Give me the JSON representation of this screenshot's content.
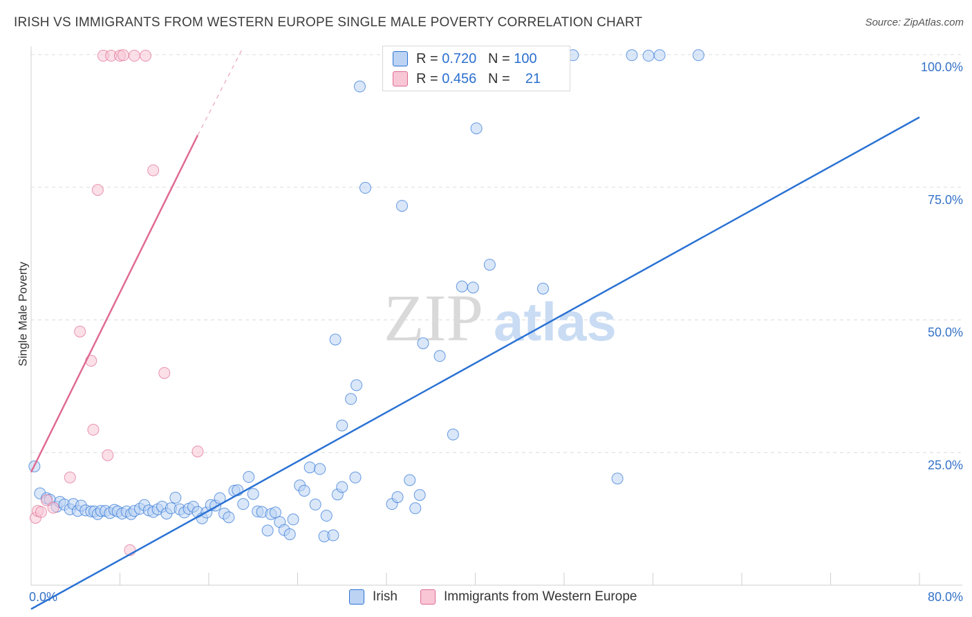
{
  "title": "IRISH VS IMMIGRANTS FROM WESTERN EUROPE SINGLE MALE POVERTY CORRELATION CHART",
  "source": "Source: ZipAtlas.com",
  "watermark": {
    "zip": "ZIP",
    "atlas": "atlas"
  },
  "colors": {
    "blue": "#2a72d4",
    "pink": "#e06a93",
    "blue_fill": "#bcd3f4",
    "pink_fill": "#f8c6d5"
  },
  "legend": {
    "row1": {
      "r_label": "R =",
      "r_value": "0.720",
      "n_label": "N =",
      "n_value": "100"
    },
    "row2": {
      "r_label": "R =",
      "r_value": "0.456",
      "n_label": "N =",
      "n_value": "21"
    }
  },
  "chart_data": {
    "type": "scatter",
    "title": "IRISH VS IMMIGRANTS FROM WESTERN EUROPE SINGLE MALE POVERTY CORRELATION CHART",
    "xlabel": "",
    "ylabel": "Single Male Poverty",
    "xlim": [
      0,
      80
    ],
    "ylim": [
      0,
      100
    ],
    "x_tick_labels": [
      "0.0%",
      "80.0%"
    ],
    "y_ticks": [
      25,
      50,
      75,
      100
    ],
    "y_tick_labels": [
      "25.0%",
      "50.0%",
      "75.0%",
      "100.0%"
    ],
    "grid": true,
    "legend_position": "bottom",
    "series": [
      {
        "name": "Irish",
        "color": "#2a72d4",
        "points": [
          [
            0.3,
            22.4
          ],
          [
            0.8,
            17.3
          ],
          [
            1.4,
            16.4
          ],
          [
            1.7,
            16.1
          ],
          [
            2.3,
            14.8
          ],
          [
            2.6,
            15.7
          ],
          [
            3.0,
            15.2
          ],
          [
            3.5,
            14.3
          ],
          [
            3.8,
            15.3
          ],
          [
            4.2,
            14.0
          ],
          [
            4.5,
            15.0
          ],
          [
            4.9,
            14.1
          ],
          [
            5.4,
            13.9
          ],
          [
            5.7,
            13.9
          ],
          [
            6.0,
            13.4
          ],
          [
            6.3,
            14.0
          ],
          [
            6.7,
            14.0
          ],
          [
            7.1,
            13.6
          ],
          [
            7.5,
            14.2
          ],
          [
            7.8,
            13.9
          ],
          [
            8.2,
            13.5
          ],
          [
            8.6,
            13.9
          ],
          [
            9.0,
            13.4
          ],
          [
            9.3,
            14.0
          ],
          [
            9.8,
            14.4
          ],
          [
            10.2,
            15.1
          ],
          [
            10.6,
            14.1
          ],
          [
            11.0,
            13.8
          ],
          [
            11.4,
            14.3
          ],
          [
            11.8,
            14.8
          ],
          [
            12.2,
            13.5
          ],
          [
            12.6,
            14.5
          ],
          [
            13.0,
            16.5
          ],
          [
            13.4,
            14.3
          ],
          [
            13.8,
            13.7
          ],
          [
            14.2,
            14.4
          ],
          [
            14.6,
            14.8
          ],
          [
            15.0,
            13.8
          ],
          [
            15.4,
            12.6
          ],
          [
            15.8,
            13.7
          ],
          [
            16.2,
            15.1
          ],
          [
            16.6,
            15.0
          ],
          [
            17.0,
            16.4
          ],
          [
            17.4,
            13.5
          ],
          [
            17.8,
            12.8
          ],
          [
            18.3,
            17.8
          ],
          [
            18.6,
            17.9
          ],
          [
            19.1,
            15.3
          ],
          [
            19.6,
            20.4
          ],
          [
            20.0,
            17.2
          ],
          [
            20.4,
            13.9
          ],
          [
            20.8,
            13.8
          ],
          [
            21.3,
            10.3
          ],
          [
            21.6,
            13.4
          ],
          [
            22.0,
            13.7
          ],
          [
            22.4,
            11.9
          ],
          [
            22.8,
            10.4
          ],
          [
            23.3,
            9.6
          ],
          [
            23.6,
            12.4
          ],
          [
            24.2,
            18.8
          ],
          [
            24.6,
            17.8
          ],
          [
            25.1,
            22.2
          ],
          [
            25.6,
            15.2
          ],
          [
            26.0,
            21.9
          ],
          [
            26.4,
            9.2
          ],
          [
            26.6,
            13.1
          ],
          [
            27.2,
            9.4
          ],
          [
            27.6,
            17.1
          ],
          [
            28.0,
            18.5
          ],
          [
            29.2,
            20.3
          ],
          [
            29.6,
            94.0
          ],
          [
            30.1,
            74.9
          ],
          [
            32.5,
            15.3
          ],
          [
            33.0,
            16.6
          ],
          [
            33.4,
            71.5
          ],
          [
            34.1,
            19.8
          ],
          [
            34.6,
            14.5
          ],
          [
            35.0,
            17.0
          ],
          [
            35.3,
            45.6
          ],
          [
            35.8,
            99.8
          ],
          [
            36.2,
            99.9
          ],
          [
            36.8,
            43.2
          ],
          [
            38.0,
            28.4
          ],
          [
            38.8,
            56.3
          ],
          [
            39.8,
            56.1
          ],
          [
            40.1,
            86.1
          ],
          [
            41.3,
            60.4
          ],
          [
            43.0,
            99.9
          ],
          [
            45.9,
            99.9
          ],
          [
            46.1,
            55.9
          ],
          [
            48.8,
            99.9
          ],
          [
            52.8,
            20.1
          ],
          [
            54.1,
            99.9
          ],
          [
            55.6,
            99.8
          ],
          [
            56.6,
            99.9
          ],
          [
            60.1,
            99.9
          ],
          [
            27.4,
            46.3
          ],
          [
            28.0,
            30.1
          ],
          [
            28.8,
            35.1
          ],
          [
            29.3,
            37.7
          ]
        ]
      },
      {
        "name": "Immigrants from Western Europe",
        "color": "#e06a93",
        "points": [
          [
            0.4,
            12.7
          ],
          [
            0.6,
            14.0
          ],
          [
            0.9,
            13.8
          ],
          [
            1.4,
            16.0
          ],
          [
            2.0,
            14.6
          ],
          [
            3.5,
            20.3
          ],
          [
            4.4,
            47.8
          ],
          [
            5.4,
            42.3
          ],
          [
            6.0,
            74.5
          ],
          [
            5.6,
            29.3
          ],
          [
            6.5,
            99.8
          ],
          [
            6.9,
            24.5
          ],
          [
            7.2,
            99.8
          ],
          [
            8.0,
            99.8
          ],
          [
            8.3,
            99.9
          ],
          [
            8.9,
            6.6
          ],
          [
            9.3,
            99.8
          ],
          [
            10.3,
            99.8
          ],
          [
            11.0,
            78.2
          ],
          [
            12.0,
            40.0
          ],
          [
            15.0,
            25.2
          ]
        ]
      }
    ],
    "trendlines": [
      {
        "series": "Irish",
        "x": [
          0.0,
          80.0
        ],
        "y": [
          -4.5,
          88.2
        ]
      },
      {
        "series": "Immigrants from Western Europe",
        "x": [
          0.0,
          15.0
        ],
        "y": [
          21.3,
          84.8
        ],
        "dashed_extension_x": [
          15.0,
          19.0
        ],
        "dashed_extension_y": [
          84.8,
          101.0
        ]
      }
    ]
  }
}
